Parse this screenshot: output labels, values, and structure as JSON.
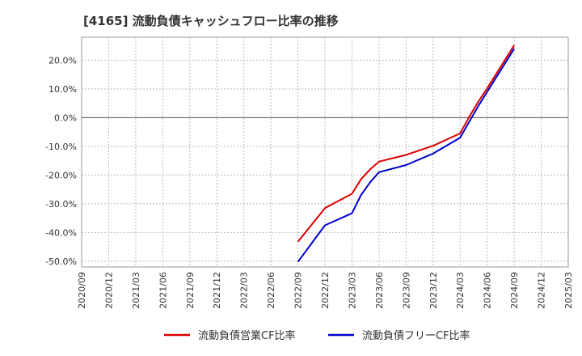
{
  "chart_data": {
    "type": "line",
    "title": "[4165]  流動負債キャッシュフロー比率の推移",
    "xlabel": "",
    "ylabel": "",
    "ylim": [
      -52,
      28
    ],
    "yticks": [
      -50,
      -40,
      -30,
      -20,
      -10,
      0,
      10,
      20
    ],
    "ytick_labels": [
      "-50.0%",
      "-40.0%",
      "-30.0%",
      "-20.0%",
      "-10.0%",
      "0.0%",
      "10.0%",
      "20.0%"
    ],
    "x_categories": [
      "2020/09",
      "2020/12",
      "2021/03",
      "2021/06",
      "2021/09",
      "2021/12",
      "2022/03",
      "2022/06",
      "2022/09",
      "2022/12",
      "2023/03",
      "2023/06",
      "2023/09",
      "2023/12",
      "2024/03",
      "2024/06",
      "2024/09",
      "2024/12",
      "2025/03"
    ],
    "grid": true,
    "legend_position": "bottom",
    "series": [
      {
        "name": "流動負債営業CF比率",
        "color": "#dd0000",
        "points": [
          {
            "x": 8,
            "y": -43.2
          },
          {
            "x": 9,
            "y": -31.5
          },
          {
            "x": 10,
            "y": -26.5
          },
          {
            "x": 10.33,
            "y": -21.5
          },
          {
            "x": 10.67,
            "y": -18.0
          },
          {
            "x": 11,
            "y": -15.3
          },
          {
            "x": 12,
            "y": -13.0
          },
          {
            "x": 13,
            "y": -9.8
          },
          {
            "x": 14,
            "y": -5.5
          },
          {
            "x": 14.33,
            "y": 0.2
          },
          {
            "x": 14.67,
            "y": 5.5
          },
          {
            "x": 15,
            "y": 10.2
          },
          {
            "x": 16,
            "y": 25.2
          }
        ]
      },
      {
        "name": "流動負債フリーCF比率",
        "color": "#0000cc",
        "points": [
          {
            "x": 8,
            "y": -50.2
          },
          {
            "x": 9,
            "y": -37.5
          },
          {
            "x": 10,
            "y": -33.3
          },
          {
            "x": 10.33,
            "y": -27.0
          },
          {
            "x": 10.67,
            "y": -22.5
          },
          {
            "x": 11,
            "y": -19.0
          },
          {
            "x": 12,
            "y": -16.5
          },
          {
            "x": 13,
            "y": -12.5
          },
          {
            "x": 14,
            "y": -7.0
          },
          {
            "x": 14.33,
            "y": -1.5
          },
          {
            "x": 14.67,
            "y": 4.0
          },
          {
            "x": 15,
            "y": 9.0
          },
          {
            "x": 16,
            "y": 24.0
          }
        ]
      }
    ]
  }
}
